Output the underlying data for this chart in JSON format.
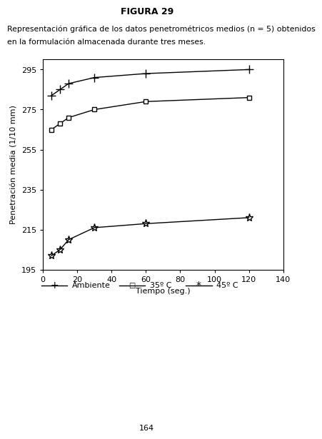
{
  "title": "FIGURA 29",
  "description_line1": "Representación gráfica de los datos penetrométricos medios (n = 5) obtenidos",
  "description_line2": "en la formulación almacenada durante tres meses.",
  "ylabel": "Penetración media (1/10 mm)",
  "xlabel": "Tiempo (seg.)",
  "xlim": [
    0,
    140
  ],
  "ylim": [
    195,
    300
  ],
  "yticks": [
    195,
    215,
    235,
    255,
    275,
    295
  ],
  "xticks": [
    0,
    20,
    40,
    60,
    80,
    100,
    120,
    140
  ],
  "page_number": "164",
  "series": [
    {
      "label": "Ambiente",
      "x": [
        5,
        10,
        15,
        30,
        60,
        120
      ],
      "y": [
        282,
        285,
        288,
        291,
        293,
        295
      ],
      "marker": "+",
      "color": "#000000",
      "linestyle": "-"
    },
    {
      "label": "35º C",
      "x": [
        5,
        10,
        15,
        30,
        60,
        120
      ],
      "y": [
        265,
        268,
        271,
        275,
        279,
        281
      ],
      "marker": "s",
      "color": "#000000",
      "linestyle": "-"
    },
    {
      "label": "45º C",
      "x": [
        5,
        10,
        15,
        30,
        60,
        120
      ],
      "y": [
        202,
        205,
        210,
        216,
        218,
        221
      ],
      "marker": "*",
      "color": "#000000",
      "linestyle": "-"
    }
  ],
  "background_color": "#ffffff",
  "font_color": "#000000",
  "markers": [
    "+",
    "s",
    "*"
  ],
  "markersizes": [
    8,
    5,
    8
  ],
  "markerfacecolors": [
    "none",
    "white",
    "none"
  ],
  "legend_labels": [
    "Ambiente",
    "35º C",
    "45º C"
  ]
}
